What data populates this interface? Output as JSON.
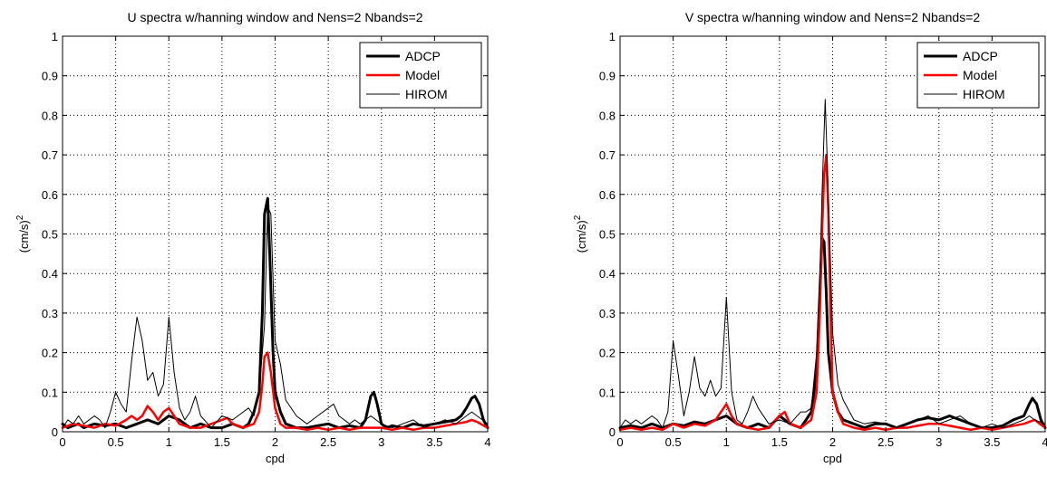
{
  "chart_data": [
    {
      "type": "line",
      "title": "U spectra w/hanning window and Nens=2 Nbands=2",
      "xlabel": "cpd",
      "ylabel_main": "(cm/s)",
      "ylabel_sup": "2",
      "xlim": [
        0,
        4
      ],
      "ylim": [
        0,
        1
      ],
      "xticks": [
        "0",
        "0.5",
        "1",
        "1.5",
        "2",
        "2.5",
        "3",
        "3.5",
        "4"
      ],
      "yticks": [
        "0",
        "0.1",
        "0.2",
        "0.3",
        "0.4",
        "0.5",
        "0.6",
        "0.7",
        "0.8",
        "0.9",
        "1"
      ],
      "grid": true,
      "legend_position": "top-right",
      "series": [
        {
          "name": "ADCP",
          "color": "#000000",
          "width": 3,
          "x": [
            0,
            0.05,
            0.1,
            0.15,
            0.2,
            0.25,
            0.3,
            0.4,
            0.5,
            0.6,
            0.7,
            0.8,
            0.9,
            1.0,
            1.1,
            1.2,
            1.3,
            1.4,
            1.5,
            1.6,
            1.7,
            1.75,
            1.8,
            1.85,
            1.88,
            1.9,
            1.93,
            1.95,
            1.98,
            2.0,
            2.05,
            2.1,
            2.2,
            2.3,
            2.4,
            2.5,
            2.6,
            2.7,
            2.8,
            2.85,
            2.9,
            2.93,
            2.96,
            3.0,
            3.05,
            3.1,
            3.2,
            3.3,
            3.4,
            3.5,
            3.6,
            3.7,
            3.75,
            3.8,
            3.85,
            3.88,
            3.92,
            3.96,
            4.0
          ],
          "y": [
            0.02,
            0.01,
            0.015,
            0.02,
            0.01,
            0.015,
            0.02,
            0.015,
            0.02,
            0.01,
            0.02,
            0.03,
            0.02,
            0.04,
            0.03,
            0.01,
            0.02,
            0.01,
            0.01,
            0.02,
            0.01,
            0.02,
            0.05,
            0.1,
            0.3,
            0.55,
            0.59,
            0.45,
            0.2,
            0.1,
            0.05,
            0.02,
            0.01,
            0.01,
            0.015,
            0.02,
            0.01,
            0.015,
            0.01,
            0.03,
            0.09,
            0.1,
            0.07,
            0.02,
            0.01,
            0.015,
            0.01,
            0.02,
            0.015,
            0.02,
            0.025,
            0.03,
            0.04,
            0.06,
            0.085,
            0.09,
            0.07,
            0.03,
            0.01
          ]
        },
        {
          "name": "Model",
          "color": "#ff0000",
          "width": 2.5,
          "x": [
            0,
            0.1,
            0.2,
            0.3,
            0.4,
            0.5,
            0.6,
            0.65,
            0.7,
            0.75,
            0.8,
            0.85,
            0.9,
            0.95,
            1.0,
            1.05,
            1.1,
            1.2,
            1.3,
            1.4,
            1.5,
            1.55,
            1.6,
            1.7,
            1.8,
            1.85,
            1.88,
            1.9,
            1.93,
            1.96,
            2.0,
            2.05,
            2.1,
            2.2,
            2.3,
            2.4,
            2.5,
            2.6,
            2.7,
            2.8,
            2.9,
            3.0,
            3.1,
            3.2,
            3.3,
            3.4,
            3.5,
            3.6,
            3.7,
            3.8,
            3.85,
            3.9,
            4.0
          ],
          "y": [
            0.01,
            0.02,
            0.015,
            0.01,
            0.02,
            0.015,
            0.03,
            0.04,
            0.03,
            0.04,
            0.065,
            0.05,
            0.03,
            0.05,
            0.06,
            0.04,
            0.02,
            0.01,
            0.01,
            0.02,
            0.03,
            0.035,
            0.02,
            0.01,
            0.02,
            0.05,
            0.12,
            0.19,
            0.2,
            0.15,
            0.06,
            0.02,
            0.01,
            0.01,
            0.005,
            0.01,
            0.005,
            0.01,
            0.005,
            0.01,
            0.01,
            0.01,
            0.005,
            0.01,
            0.005,
            0.01,
            0.01,
            0.015,
            0.02,
            0.025,
            0.03,
            0.025,
            0.01
          ]
        },
        {
          "name": "HIROM",
          "color": "#000000",
          "width": 1,
          "x": [
            0,
            0.05,
            0.1,
            0.15,
            0.2,
            0.3,
            0.35,
            0.4,
            0.45,
            0.5,
            0.55,
            0.6,
            0.65,
            0.7,
            0.75,
            0.8,
            0.85,
            0.9,
            0.95,
            1.0,
            1.05,
            1.1,
            1.15,
            1.2,
            1.25,
            1.3,
            1.4,
            1.5,
            1.6,
            1.7,
            1.75,
            1.8,
            1.85,
            1.9,
            1.93,
            1.96,
            2.0,
            2.05,
            2.1,
            2.2,
            2.3,
            2.4,
            2.5,
            2.55,
            2.6,
            2.7,
            2.75,
            2.8,
            2.9,
            3.0,
            3.1,
            3.2,
            3.3,
            3.4,
            3.5,
            3.6,
            3.7,
            3.8,
            3.85,
            3.9,
            4.0
          ],
          "y": [
            0.01,
            0.03,
            0.02,
            0.04,
            0.02,
            0.04,
            0.03,
            0.01,
            0.05,
            0.1,
            0.07,
            0.05,
            0.18,
            0.29,
            0.23,
            0.13,
            0.15,
            0.09,
            0.12,
            0.29,
            0.15,
            0.06,
            0.03,
            0.05,
            0.09,
            0.04,
            0.01,
            0.04,
            0.03,
            0.05,
            0.06,
            0.04,
            0.1,
            0.27,
            0.57,
            0.55,
            0.23,
            0.17,
            0.08,
            0.04,
            0.02,
            0.04,
            0.06,
            0.07,
            0.04,
            0.02,
            0.03,
            0.02,
            0.04,
            0.02,
            0.01,
            0.02,
            0.03,
            0.01,
            0.02,
            0.03,
            0.02,
            0.04,
            0.05,
            0.04,
            0.02
          ]
        }
      ]
    },
    {
      "type": "line",
      "title": "V spectra w/hanning window and Nens=2 Nbands=2",
      "xlabel": "cpd",
      "ylabel_main": "(cm/s)",
      "ylabel_sup": "2",
      "xlim": [
        0,
        4
      ],
      "ylim": [
        0,
        1
      ],
      "xticks": [
        "0",
        "0.5",
        "1",
        "1.5",
        "2",
        "2.5",
        "3",
        "3.5",
        "4"
      ],
      "yticks": [
        "0",
        "0.1",
        "0.2",
        "0.3",
        "0.4",
        "0.5",
        "0.6",
        "0.7",
        "0.8",
        "0.9",
        "1"
      ],
      "grid": true,
      "legend_position": "top-right",
      "series": [
        {
          "name": "ADCP",
          "color": "#000000",
          "width": 3,
          "x": [
            0,
            0.1,
            0.2,
            0.3,
            0.4,
            0.5,
            0.6,
            0.7,
            0.8,
            0.9,
            1.0,
            1.1,
            1.2,
            1.3,
            1.4,
            1.5,
            1.6,
            1.7,
            1.75,
            1.8,
            1.85,
            1.88,
            1.9,
            1.92,
            1.94,
            1.96,
            2.0,
            2.05,
            2.1,
            2.2,
            2.3,
            2.4,
            2.5,
            2.6,
            2.7,
            2.8,
            2.9,
            3.0,
            3.1,
            3.2,
            3.3,
            3.4,
            3.5,
            3.6,
            3.7,
            3.8,
            3.85,
            3.88,
            3.92,
            3.96,
            4.0
          ],
          "y": [
            0.01,
            0.015,
            0.01,
            0.02,
            0.01,
            0.02,
            0.015,
            0.025,
            0.02,
            0.03,
            0.04,
            0.02,
            0.01,
            0.02,
            0.01,
            0.04,
            0.02,
            0.01,
            0.03,
            0.05,
            0.15,
            0.35,
            0.49,
            0.48,
            0.35,
            0.2,
            0.1,
            0.05,
            0.03,
            0.02,
            0.01,
            0.02,
            0.02,
            0.01,
            0.02,
            0.03,
            0.035,
            0.03,
            0.04,
            0.03,
            0.02,
            0.01,
            0.01,
            0.015,
            0.03,
            0.04,
            0.07,
            0.085,
            0.07,
            0.03,
            0.01
          ]
        },
        {
          "name": "Model",
          "color": "#ff0000",
          "width": 2.5,
          "x": [
            0,
            0.1,
            0.2,
            0.3,
            0.4,
            0.5,
            0.6,
            0.7,
            0.8,
            0.9,
            0.95,
            1.0,
            1.05,
            1.1,
            1.2,
            1.3,
            1.4,
            1.5,
            1.55,
            1.6,
            1.7,
            1.8,
            1.85,
            1.88,
            1.9,
            1.92,
            1.94,
            1.96,
            1.98,
            2.0,
            2.05,
            2.1,
            2.2,
            2.3,
            2.4,
            2.5,
            2.6,
            2.7,
            2.8,
            2.9,
            3.0,
            3.1,
            3.2,
            3.3,
            3.4,
            3.5,
            3.6,
            3.7,
            3.8,
            3.85,
            3.9,
            4.0
          ],
          "y": [
            0.005,
            0.01,
            0.005,
            0.01,
            0.005,
            0.02,
            0.01,
            0.02,
            0.015,
            0.03,
            0.05,
            0.07,
            0.04,
            0.02,
            0.01,
            0.005,
            0.01,
            0.04,
            0.05,
            0.02,
            0.01,
            0.03,
            0.1,
            0.3,
            0.5,
            0.65,
            0.7,
            0.55,
            0.3,
            0.1,
            0.05,
            0.02,
            0.01,
            0.005,
            0.01,
            0.005,
            0.01,
            0.01,
            0.015,
            0.02,
            0.02,
            0.015,
            0.01,
            0.005,
            0.01,
            0.005,
            0.01,
            0.015,
            0.02,
            0.025,
            0.03,
            0.01
          ]
        },
        {
          "name": "HIROM",
          "color": "#000000",
          "width": 1,
          "x": [
            0,
            0.05,
            0.1,
            0.15,
            0.2,
            0.3,
            0.35,
            0.4,
            0.45,
            0.5,
            0.55,
            0.6,
            0.65,
            0.7,
            0.75,
            0.8,
            0.85,
            0.9,
            0.95,
            1.0,
            1.05,
            1.1,
            1.15,
            1.2,
            1.25,
            1.3,
            1.4,
            1.5,
            1.6,
            1.7,
            1.75,
            1.8,
            1.85,
            1.88,
            1.9,
            1.93,
            1.96,
            2.0,
            2.05,
            2.1,
            2.2,
            2.3,
            2.4,
            2.5,
            2.6,
            2.7,
            2.8,
            2.9,
            3.0,
            3.1,
            3.2,
            3.3,
            3.4,
            3.5,
            3.6,
            3.7,
            3.8,
            3.85,
            3.9,
            4.0
          ],
          "y": [
            0.01,
            0.03,
            0.02,
            0.03,
            0.02,
            0.04,
            0.03,
            0.01,
            0.05,
            0.23,
            0.14,
            0.04,
            0.1,
            0.19,
            0.11,
            0.09,
            0.13,
            0.09,
            0.11,
            0.34,
            0.1,
            0.03,
            0.02,
            0.05,
            0.09,
            0.06,
            0.02,
            0.03,
            0.02,
            0.05,
            0.05,
            0.06,
            0.2,
            0.38,
            0.6,
            0.84,
            0.6,
            0.25,
            0.12,
            0.08,
            0.03,
            0.02,
            0.025,
            0.02,
            0.01,
            0.02,
            0.03,
            0.04,
            0.02,
            0.03,
            0.04,
            0.02,
            0.01,
            0.02,
            0.01,
            0.02,
            0.03,
            0.04,
            0.03,
            0.02
          ]
        }
      ]
    }
  ]
}
